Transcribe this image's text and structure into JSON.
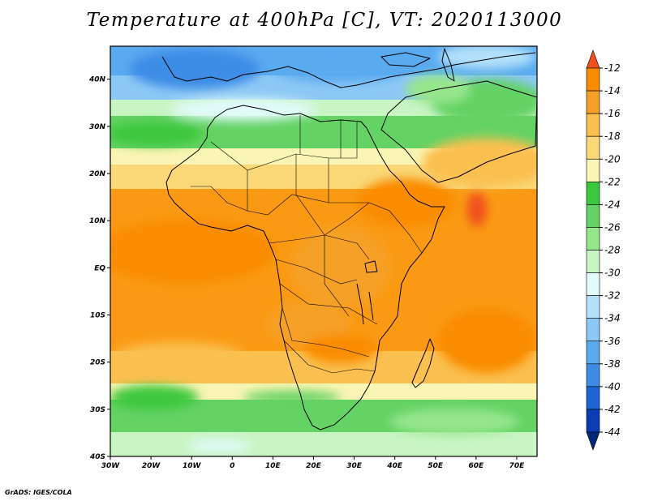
{
  "title": "Temperature at 400hPa [C], VT: 2020113000",
  "credit": "GrADS: IGES/COLA",
  "map": {
    "lon_range": [
      -30,
      75
    ],
    "lat_range": [
      -40,
      47
    ],
    "lon_ticks": [
      {
        "lon": -30,
        "label": "30W"
      },
      {
        "lon": -20,
        "label": "20W"
      },
      {
        "lon": -10,
        "label": "10W"
      },
      {
        "lon": 0,
        "label": "0"
      },
      {
        "lon": 10,
        "label": "10E"
      },
      {
        "lon": 20,
        "label": "20E"
      },
      {
        "lon": 30,
        "label": "30E"
      },
      {
        "lon": 40,
        "label": "40E"
      },
      {
        "lon": 50,
        "label": "50E"
      },
      {
        "lon": 60,
        "label": "60E"
      },
      {
        "lon": 70,
        "label": "70E"
      }
    ],
    "lat_ticks": [
      {
        "lat": 40,
        "label": "40N"
      },
      {
        "lat": 30,
        "label": "30N"
      },
      {
        "lat": 20,
        "label": "20N"
      },
      {
        "lat": 10,
        "label": "10N"
      },
      {
        "lat": 0,
        "label": "EQ"
      },
      {
        "lat": -10,
        "label": "10S"
      },
      {
        "lat": -20,
        "label": "20S"
      },
      {
        "lat": -30,
        "label": "30S"
      },
      {
        "lat": -40,
        "label": "40S"
      }
    ]
  },
  "colorbar": {
    "labels": [
      "-12",
      "-14",
      "-16",
      "-18",
      "-20",
      "-22",
      "-24",
      "-26",
      "-28",
      "-30",
      "-32",
      "-34",
      "-36",
      "-38",
      "-40",
      "-42",
      "-44"
    ],
    "colors": [
      "#f0501e",
      "#fa8c00",
      "#f5a028",
      "#fac050",
      "#fad878",
      "#faf5b4",
      "#3cc83c",
      "#64d264",
      "#96e68c",
      "#c8f5c3",
      "#e1fafa",
      "#b4e1fa",
      "#8cc8f5",
      "#5aaaf0",
      "#3c8ce6",
      "#1e64d2",
      "#0a3cb4",
      "#002878"
    ]
  }
}
